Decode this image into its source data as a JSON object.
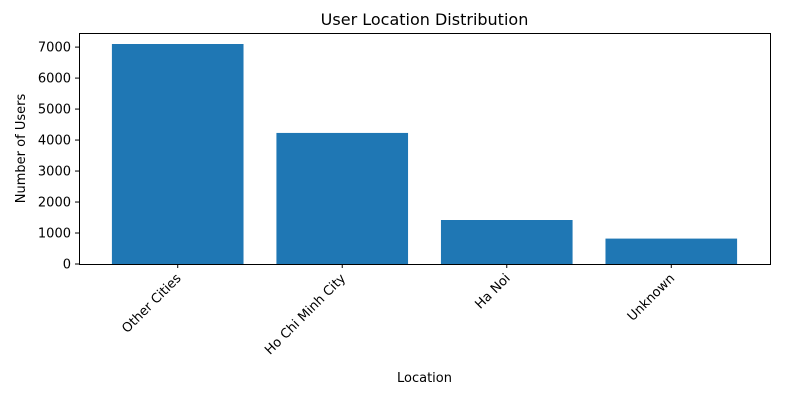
{
  "chart_data": {
    "type": "bar",
    "title": "User Location Distribution",
    "xlabel": "Location",
    "ylabel": "Number of Users",
    "categories": [
      "Other Cities",
      "Ho Chi Minh City",
      "Ha Noi",
      "Unknown"
    ],
    "values": [
      7100,
      4230,
      1420,
      820
    ],
    "ylim": [
      0,
      7455
    ],
    "yticks": [
      0,
      1000,
      2000,
      3000,
      4000,
      5000,
      6000,
      7000
    ],
    "ytick_labels": [
      "0",
      "1000",
      "2000",
      "3000",
      "4000",
      "5000",
      "6000",
      "7000"
    ],
    "bar_color": "#1f77b4",
    "grid": false,
    "xtick_rotation": 45
  }
}
